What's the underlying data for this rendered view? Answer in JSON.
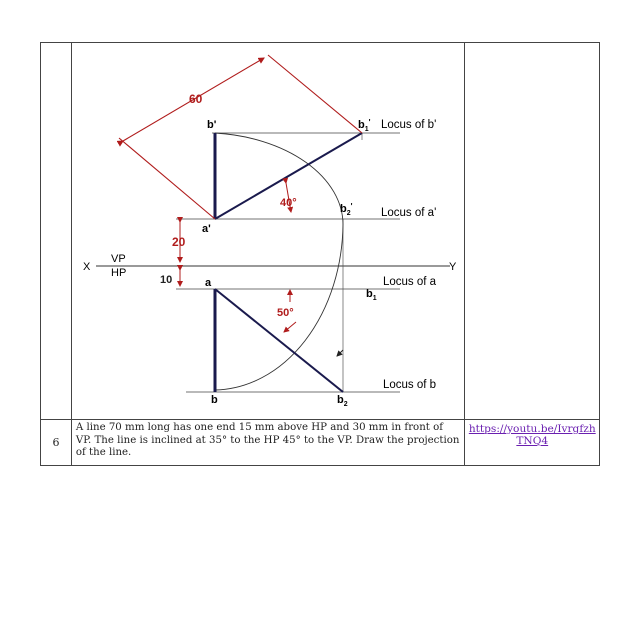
{
  "row": {
    "number": "6",
    "question": "A line 70 mm long has one end 15 mm above HP and 30 mm in front of VP. The line is inclined at 35° to the HP 45° to the VP. Draw the projection of the line.",
    "link": "https://youtu.be/IvrgfzhTNQ4"
  },
  "figure": {
    "dim_60": "60",
    "dim_20": "20",
    "dim_10": "10",
    "angle_40": "40°",
    "angle_50": "50°",
    "x_label": "X",
    "y_label": "Y",
    "vp_label": "VP",
    "hp_label": "HP",
    "pt_b_prime": "b'",
    "pt_a_prime": "a'",
    "pt_a": "a",
    "pt_b": "b",
    "pt_b1_prime": "b",
    "pt_b2_prime": "b",
    "pt_b1": "b",
    "pt_b2": "b",
    "sub_1": "1",
    "sub_2": "2",
    "prime": "'",
    "locus_b_prime": "Locus of b'",
    "locus_a_prime": "Locus of a'",
    "locus_a": "Locus of a",
    "locus_b": "Locus of b",
    "colors": {
      "line": "#1a1a4d",
      "dimension": "#b01c1c",
      "thin": "#333333"
    }
  }
}
